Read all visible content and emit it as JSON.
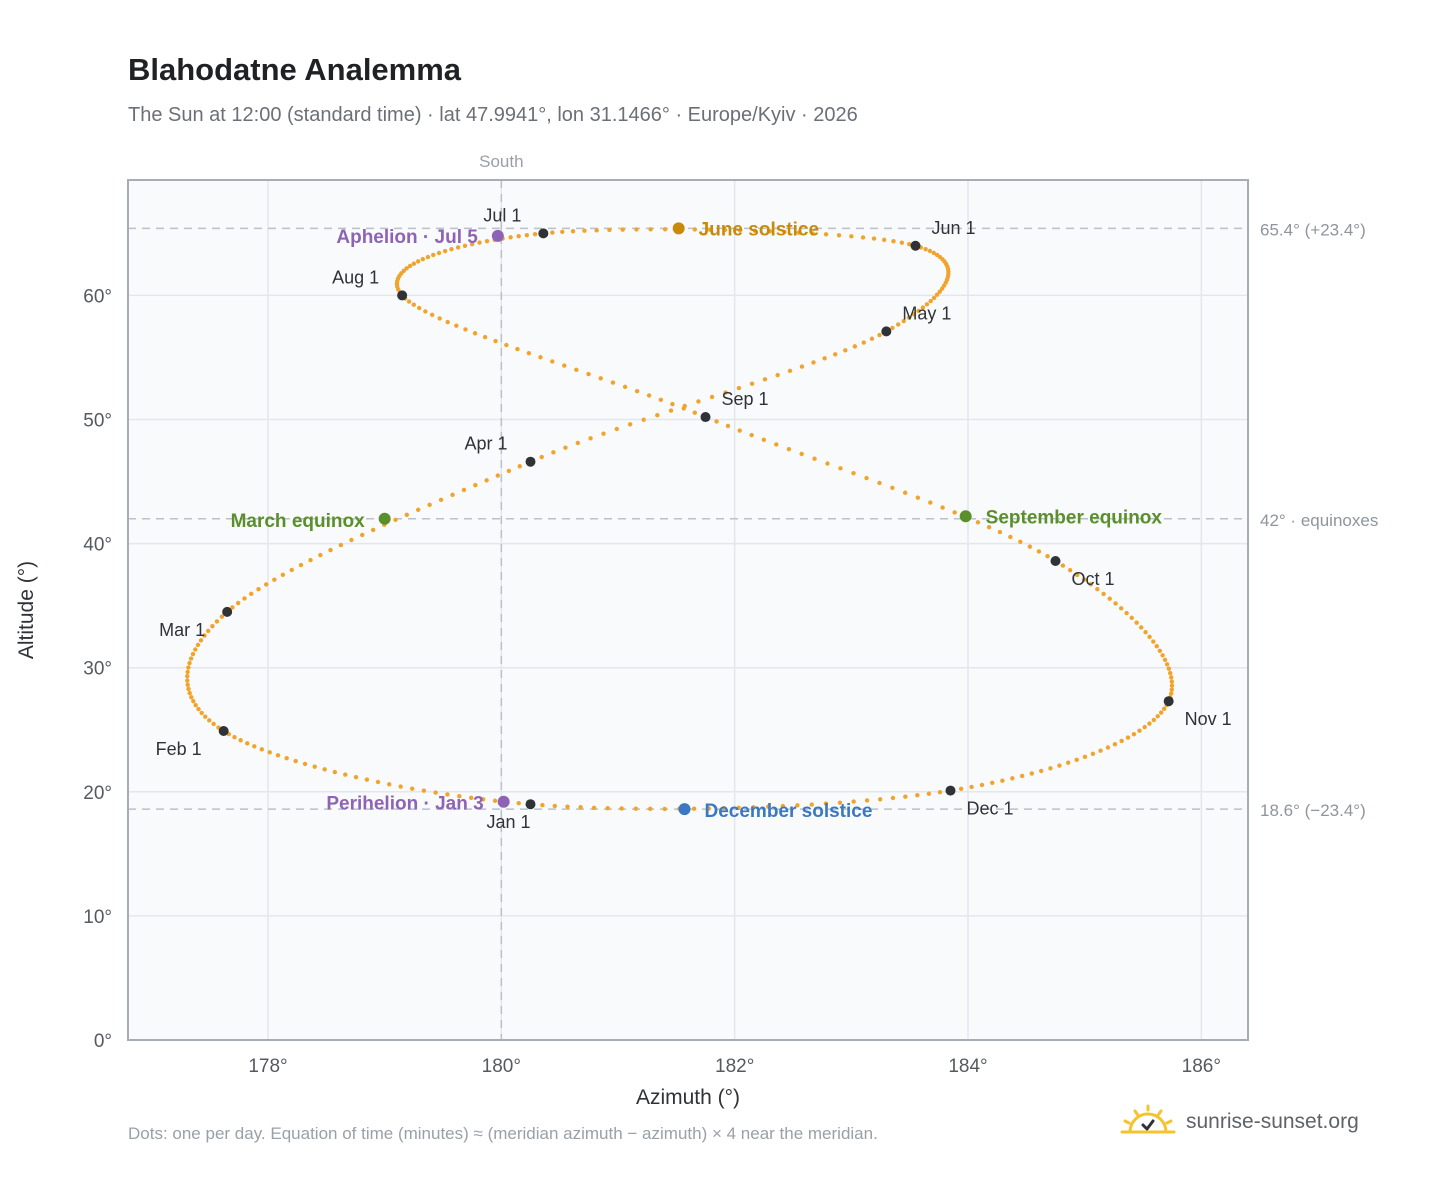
{
  "header": {
    "title": "Blahodatne Analemma",
    "subtitle": "The Sun at 12:00 (standard time) · lat 47.9941°, lon 31.1466° · Europe/Kyiv · 2026"
  },
  "footer": {
    "note": "Dots: one per day. Equation of time (minutes) ≈ (meridian azimuth − azimuth) × 4 near the meridian.",
    "brand": "sunrise-sunset.org"
  },
  "chart_data": {
    "type": "scatter",
    "xlabel": "Azimuth (°)",
    "ylabel": "Altitude (°)",
    "xlim": [
      176.8,
      186.4
    ],
    "ylim": [
      0,
      69.3
    ],
    "xticks": [
      178,
      180,
      182,
      184,
      186
    ],
    "xtick_labels": [
      "178°",
      "180°",
      "182°",
      "184°",
      "186°"
    ],
    "yticks": [
      0,
      10,
      20,
      30,
      40,
      50,
      60
    ],
    "ytick_labels": [
      "0°",
      "10°",
      "20°",
      "30°",
      "40°",
      "50°",
      "60°"
    ],
    "grid": true,
    "meridian": {
      "label": "South",
      "azimuth": 180
    },
    "reference_lines": [
      {
        "altitude": 65.4,
        "label": "65.4° (+23.4°)"
      },
      {
        "altitude": 42,
        "label": "42° · equinoxes"
      },
      {
        "altitude": 18.6,
        "label": "18.6° (−23.4°)"
      }
    ],
    "month_markers": [
      {
        "label": "Jan 1",
        "az": 180.25,
        "alt": 19.0
      },
      {
        "label": "Feb 1",
        "az": 177.62,
        "alt": 24.9
      },
      {
        "label": "Mar 1",
        "az": 177.65,
        "alt": 34.5
      },
      {
        "label": "Apr 1",
        "az": 180.25,
        "alt": 46.6
      },
      {
        "label": "May 1",
        "az": 183.3,
        "alt": 57.1
      },
      {
        "label": "Jun 1",
        "az": 183.55,
        "alt": 64.0
      },
      {
        "label": "Jul 1",
        "az": 180.36,
        "alt": 65.0
      },
      {
        "label": "Aug 1",
        "az": 179.15,
        "alt": 60.0
      },
      {
        "label": "Sep 1",
        "az": 181.75,
        "alt": 50.2
      },
      {
        "label": "Oct 1",
        "az": 184.75,
        "alt": 38.6
      },
      {
        "label": "Nov 1",
        "az": 185.72,
        "alt": 27.3
      },
      {
        "label": "Dec 1",
        "az": 183.85,
        "alt": 20.1
      }
    ],
    "events": [
      {
        "label": "June solstice",
        "az": 181.52,
        "alt": 65.4,
        "color": "#c98a0a"
      },
      {
        "label": "Aphelion · Jul 5",
        "az": 179.97,
        "alt": 64.8,
        "color": "#8e63b5"
      },
      {
        "label": "March equinox",
        "az": 179.0,
        "alt": 42.0,
        "color": "#5a8f2b"
      },
      {
        "label": "September equinox",
        "az": 183.98,
        "alt": 42.2,
        "color": "#5a8f2b"
      },
      {
        "label": "Perihelion · Jan 3",
        "az": 180.02,
        "alt": 19.2,
        "color": "#8e63b5"
      },
      {
        "label": "December solstice",
        "az": 181.57,
        "alt": 18.6,
        "color": "#3b78c2"
      }
    ],
    "colors": {
      "path": "#f2a32b",
      "month_marker": "#2f3338",
      "grid": "#e3e7ec",
      "plot_background": "#f8fafc",
      "frame": "#a4adb8",
      "reference_line": "#b9c1cb"
    }
  }
}
